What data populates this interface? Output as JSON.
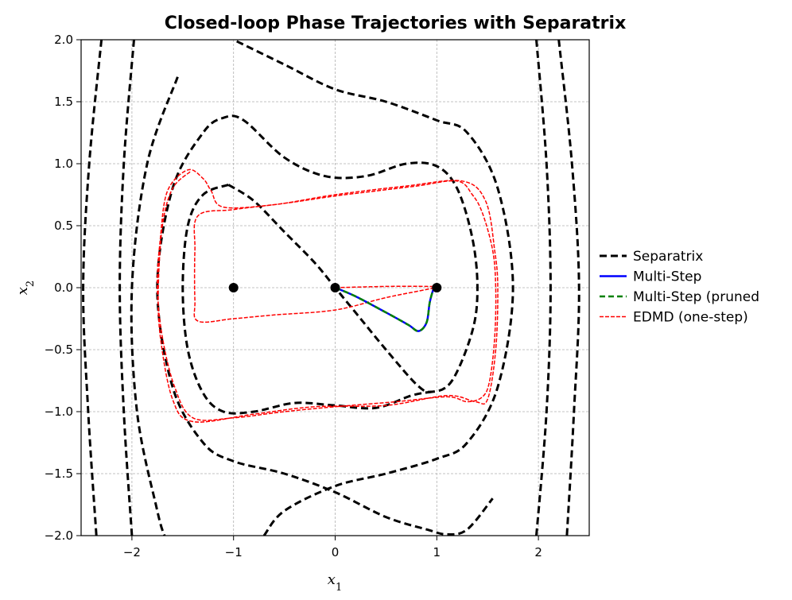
{
  "chart_data": {
    "type": "line",
    "title": "Closed-loop Phase Trajectories with Separatrix",
    "xlabel": "x",
    "xlabel_sub": "1",
    "ylabel": "x",
    "ylabel_sub": "2",
    "xlim": [
      -2.5,
      2.5
    ],
    "ylim": [
      -2.0,
      2.0
    ],
    "grid": true,
    "legend_position": "right",
    "xticks": [
      {
        "value": -2,
        "label": "−2"
      },
      {
        "value": -1,
        "label": "−1"
      },
      {
        "value": 0,
        "label": "0"
      },
      {
        "value": 1,
        "label": "1"
      },
      {
        "value": 2,
        "label": "2"
      }
    ],
    "yticks": [
      {
        "value": 2.0,
        "label": "2.0"
      },
      {
        "value": 1.5,
        "label": "1.5"
      },
      {
        "value": 1.0,
        "label": "1.0"
      },
      {
        "value": 0.5,
        "label": "0.5"
      },
      {
        "value": 0.0,
        "label": "0.0"
      },
      {
        "value": -0.5,
        "label": "−0.5"
      },
      {
        "value": -1.0,
        "label": "−1.0"
      },
      {
        "value": -1.5,
        "label": "−1.5"
      },
      {
        "value": -2.0,
        "label": "−2.0"
      }
    ],
    "series": [
      {
        "name": "Separatrix",
        "color": "#000000",
        "style": "dashed",
        "curves": [
          [
            [
              -1.05,
              0.83
            ],
            [
              -1.3,
              0.75
            ],
            [
              -1.45,
              0.5
            ],
            [
              -1.5,
              0.0
            ],
            [
              -1.45,
              -0.5
            ],
            [
              -1.3,
              -0.85
            ],
            [
              -1.1,
              -1.0
            ],
            [
              -0.8,
              -1.0
            ],
            [
              -0.4,
              -0.93
            ],
            [
              0.0,
              -0.95
            ],
            [
              0.4,
              -0.97
            ],
            [
              0.75,
              -0.87
            ],
            [
              0.95,
              -0.84
            ]
          ],
          [
            [
              -1.05,
              0.83
            ],
            [
              -0.8,
              0.7
            ],
            [
              -0.5,
              0.45
            ],
            [
              -0.2,
              0.2
            ],
            [
              0.0,
              0.0
            ],
            [
              0.2,
              -0.2
            ],
            [
              0.5,
              -0.5
            ],
            [
              0.8,
              -0.78
            ],
            [
              0.95,
              -0.84
            ],
            [
              1.15,
              -0.75
            ],
            [
              1.35,
              -0.35
            ],
            [
              1.4,
              0.0
            ],
            [
              1.35,
              0.4
            ],
            [
              1.2,
              0.8
            ],
            [
              1.0,
              0.98
            ],
            [
              0.7,
              1.0
            ],
            [
              0.3,
              0.9
            ],
            [
              -0.1,
              0.9
            ],
            [
              -0.5,
              1.05
            ],
            [
              -0.9,
              1.35
            ],
            [
              -1.1,
              1.37
            ],
            [
              -1.3,
              1.25
            ],
            [
              -1.6,
              0.8
            ],
            [
              -1.75,
              0.0
            ],
            [
              -1.6,
              -0.8
            ],
            [
              -1.3,
              -1.25
            ],
            [
              -1.0,
              -1.4
            ],
            [
              -0.5,
              -1.5
            ],
            [
              0.0,
              -1.65
            ],
            [
              0.5,
              -1.85
            ],
            [
              0.9,
              -1.95
            ],
            [
              1.1,
              -1.99
            ],
            [
              1.3,
              -1.95
            ],
            [
              1.55,
              -1.7
            ]
          ],
          [
            [
              -0.7,
              -2.0
            ],
            [
              -0.5,
              -1.8
            ],
            [
              0.0,
              -1.6
            ],
            [
              0.5,
              -1.5
            ],
            [
              1.0,
              -1.38
            ],
            [
              1.3,
              -1.25
            ],
            [
              1.6,
              -0.8
            ],
            [
              1.75,
              0.0
            ],
            [
              1.6,
              0.8
            ],
            [
              1.3,
              1.25
            ],
            [
              1.0,
              1.35
            ],
            [
              0.5,
              1.5
            ],
            [
              0.0,
              1.6
            ],
            [
              -0.5,
              1.8
            ],
            [
              -1.0,
              2.0
            ]
          ],
          [
            [
              -1.55,
              1.7
            ],
            [
              -1.85,
              1.0
            ],
            [
              -2.0,
              0.0
            ],
            [
              -1.95,
              -1.0
            ],
            [
              -1.75,
              -1.8
            ],
            [
              -1.68,
              -2.0
            ]
          ],
          [
            [
              1.98,
              2.0
            ],
            [
              2.08,
              1.0
            ],
            [
              2.12,
              0.0
            ],
            [
              2.08,
              -1.0
            ],
            [
              1.98,
              -2.0
            ]
          ],
          [
            [
              -1.98,
              2.0
            ],
            [
              -2.08,
              1.0
            ],
            [
              -2.12,
              0.0
            ],
            [
              -2.08,
              -1.0
            ],
            [
              -2.0,
              -2.0
            ]
          ],
          [
            [
              -2.3,
              2.0
            ],
            [
              -2.42,
              1.0
            ],
            [
              -2.48,
              0.0
            ],
            [
              -2.43,
              -1.0
            ],
            [
              -2.35,
              -2.0
            ]
          ],
          [
            [
              2.2,
              2.0
            ],
            [
              2.33,
              1.0
            ],
            [
              2.4,
              0.0
            ],
            [
              2.35,
              -1.0
            ],
            [
              2.28,
              -2.0
            ]
          ]
        ]
      },
      {
        "name": "Multi-Step",
        "color": "#0000ff",
        "style": "solid",
        "points": [
          [
            0.0,
            0.0
          ],
          [
            0.2,
            -0.07
          ],
          [
            0.5,
            -0.2
          ],
          [
            0.72,
            -0.3
          ],
          [
            0.82,
            -0.35
          ],
          [
            0.9,
            -0.28
          ],
          [
            0.93,
            -0.12
          ],
          [
            0.97,
            0.0
          ]
        ]
      },
      {
        "name": "Multi-Step (pruned",
        "color": "#008000",
        "style": "dashed",
        "points": [
          [
            0.0,
            0.0
          ],
          [
            0.2,
            -0.07
          ],
          [
            0.5,
            -0.2
          ],
          [
            0.72,
            -0.3
          ],
          [
            0.82,
            -0.35
          ],
          [
            0.9,
            -0.28
          ],
          [
            0.93,
            -0.12
          ],
          [
            0.97,
            0.0
          ]
        ]
      },
      {
        "name": "EDMD (one-step)",
        "color": "#ff0000",
        "style": "dashed",
        "curves": [
          [
            [
              0.0,
              0.0
            ],
            [
              0.5,
              0.01
            ],
            [
              0.9,
              0.01
            ],
            [
              0.98,
              0.0
            ],
            [
              0.5,
              -0.08
            ],
            [
              0.0,
              -0.18
            ],
            [
              -0.6,
              -0.22
            ],
            [
              -1.0,
              -0.25
            ],
            [
              -1.35,
              -0.27
            ],
            [
              -1.38,
              -0.1
            ],
            [
              -1.38,
              0.3
            ],
            [
              -1.35,
              0.58
            ],
            [
              -1.0,
              0.63
            ],
            [
              -0.5,
              0.68
            ],
            [
              0.0,
              0.74
            ],
            [
              0.4,
              0.78
            ],
            [
              0.8,
              0.82
            ],
            [
              1.2,
              0.86
            ],
            [
              1.35,
              0.75
            ],
            [
              1.45,
              0.6
            ],
            [
              1.55,
              0.3
            ],
            [
              1.58,
              0.0
            ],
            [
              1.57,
              -0.4
            ],
            [
              1.52,
              -0.75
            ],
            [
              1.45,
              -0.88
            ],
            [
              1.3,
              -0.92
            ],
            [
              1.1,
              -0.88
            ],
            [
              0.6,
              -0.92
            ],
            [
              0.0,
              -0.96
            ],
            [
              -0.5,
              -1.0
            ],
            [
              -1.0,
              -1.05
            ],
            [
              -1.4,
              -1.05
            ],
            [
              -1.58,
              -0.8
            ],
            [
              -1.7,
              -0.4
            ],
            [
              -1.75,
              0.0
            ],
            [
              -1.72,
              0.4
            ],
            [
              -1.65,
              0.78
            ],
            [
              -1.45,
              0.95
            ],
            [
              -1.3,
              0.88
            ],
            [
              -1.22,
              0.78
            ],
            [
              -1.1,
              0.65
            ],
            [
              -0.6,
              0.67
            ],
            [
              0.0,
              0.75
            ],
            [
              0.7,
              0.82
            ],
            [
              1.25,
              0.86
            ],
            [
              1.48,
              0.7
            ],
            [
              1.57,
              0.3
            ],
            [
              1.6,
              0.0
            ],
            [
              1.58,
              -0.5
            ],
            [
              1.5,
              -0.9
            ],
            [
              1.38,
              -0.92
            ],
            [
              1.1,
              -0.87
            ],
            [
              0.5,
              -0.95
            ],
            [
              -0.2,
              -0.96
            ],
            [
              -0.8,
              -1.02
            ],
            [
              -1.4,
              -1.08
            ],
            [
              -1.6,
              -0.9
            ],
            [
              -1.72,
              -0.4
            ],
            [
              -1.74,
              0.0
            ],
            [
              -1.7,
              0.5
            ],
            [
              -1.6,
              0.8
            ],
            [
              -1.42,
              0.94
            ]
          ]
        ]
      }
    ],
    "equilibria": [
      [
        -1.0,
        0.0
      ],
      [
        0.0,
        0.0
      ],
      [
        1.0,
        0.0
      ]
    ]
  }
}
